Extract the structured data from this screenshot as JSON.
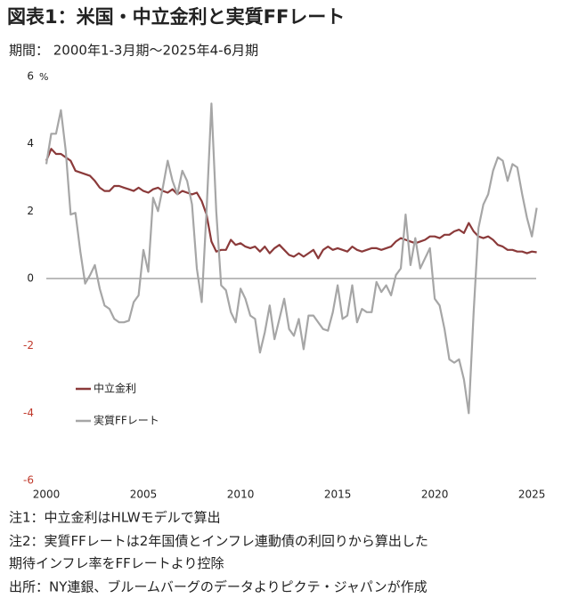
{
  "chart_data": {
    "type": "line",
    "title": "図表1：米国・中立金利と実質FFレート",
    "subtitle": "期間： 2000年1-3月期～2025年4-6月期",
    "y_unit": "%",
    "notes": [
      "注1：中立金利はHLWモデルで算出",
      "注2：実質FFレートは2年国債とインフレ連動債の利回りから算出した期待インフレ率をFFレートより控除",
      "出所：NY連銀、ブルームバーグのデータよりピクテ・ジャパンが作成"
    ],
    "x": [
      2000,
      2000.25,
      2000.5,
      2000.75,
      2001,
      2001.25,
      2001.5,
      2001.75,
      2002,
      2002.25,
      2002.5,
      2002.75,
      2003,
      2003.25,
      2003.5,
      2003.75,
      2004,
      2004.25,
      2004.5,
      2004.75,
      2005,
      2005.25,
      2005.5,
      2005.75,
      2006,
      2006.25,
      2006.5,
      2006.75,
      2007,
      2007.25,
      2007.5,
      2007.75,
      2008,
      2008.25,
      2008.5,
      2008.75,
      2009,
      2009.25,
      2009.5,
      2009.75,
      2010,
      2010.25,
      2010.5,
      2010.75,
      2011,
      2011.25,
      2011.5,
      2011.75,
      2012,
      2012.25,
      2012.5,
      2012.75,
      2013,
      2013.25,
      2013.5,
      2013.75,
      2014,
      2014.25,
      2014.5,
      2014.75,
      2015,
      2015.25,
      2015.5,
      2015.75,
      2016,
      2016.25,
      2016.5,
      2016.75,
      2017,
      2017.25,
      2017.5,
      2017.75,
      2018,
      2018.25,
      2018.5,
      2018.75,
      2019,
      2019.25,
      2019.5,
      2019.75,
      2020,
      2020.25,
      2020.5,
      2020.75,
      2021,
      2021.25,
      2021.5,
      2021.75,
      2022,
      2022.25,
      2022.5,
      2022.75,
      2023,
      2023.25,
      2023.5,
      2023.75,
      2024,
      2024.25,
      2024.5,
      2024.75,
      2025,
      2025.25
    ],
    "series": [
      {
        "name": "中立金利",
        "color": "#8b3a3a",
        "values": [
          3.5,
          3.85,
          3.7,
          3.7,
          3.6,
          3.5,
          3.2,
          3.15,
          3.1,
          3.05,
          2.9,
          2.7,
          2.6,
          2.6,
          2.75,
          2.75,
          2.7,
          2.65,
          2.6,
          2.7,
          2.6,
          2.55,
          2.65,
          2.7,
          2.6,
          2.55,
          2.65,
          2.5,
          2.6,
          2.55,
          2.5,
          2.55,
          2.3,
          1.9,
          1.1,
          0.8,
          0.85,
          0.85,
          1.15,
          1.0,
          1.05,
          0.95,
          0.9,
          0.95,
          0.8,
          0.95,
          0.75,
          0.9,
          1.0,
          0.85,
          0.7,
          0.65,
          0.75,
          0.65,
          0.75,
          0.85,
          0.6,
          0.85,
          0.95,
          0.85,
          0.9,
          0.85,
          0.8,
          0.95,
          0.85,
          0.8,
          0.85,
          0.9,
          0.9,
          0.85,
          0.9,
          0.95,
          1.1,
          1.2,
          1.15,
          1.1,
          1.05,
          1.1,
          1.15,
          1.25,
          1.25,
          1.2,
          1.3,
          1.3,
          1.4,
          1.45,
          1.35,
          1.65,
          1.4,
          1.25,
          1.2,
          1.25,
          1.15,
          1.0,
          0.95,
          0.85,
          0.85,
          0.8,
          0.8,
          0.75,
          0.8,
          0.78
        ]
      },
      {
        "name": "実質FFレート",
        "color": "#a6a6a6",
        "values": [
          3.4,
          4.3,
          4.3,
          5.0,
          3.8,
          1.9,
          1.95,
          0.8,
          -0.15,
          0.1,
          0.4,
          -0.3,
          -0.8,
          -0.9,
          -1.2,
          -1.3,
          -1.3,
          -1.25,
          -0.7,
          -0.5,
          0.85,
          0.2,
          2.4,
          2.0,
          2.7,
          3.5,
          2.9,
          2.5,
          3.2,
          2.9,
          2.2,
          0.3,
          -0.7,
          2.0,
          5.2,
          2.0,
          -0.2,
          -0.35,
          -1.0,
          -1.3,
          -0.3,
          -0.6,
          -1.1,
          -1.2,
          -2.2,
          -1.6,
          -0.8,
          -1.8,
          -1.2,
          -0.6,
          -1.5,
          -1.7,
          -1.2,
          -2.1,
          -1.1,
          -1.1,
          -1.3,
          -1.5,
          -1.55,
          -1.0,
          -0.2,
          -1.2,
          -1.1,
          -0.2,
          -1.3,
          -0.9,
          -1.0,
          -1.0,
          -0.1,
          -0.4,
          -0.2,
          -0.5,
          0.1,
          0.3,
          1.9,
          0.4,
          1.2,
          0.3,
          0.6,
          0.9,
          -0.6,
          -0.8,
          -1.5,
          -2.4,
          -2.5,
          -2.4,
          -3.0,
          -4.0,
          -1.0,
          1.5,
          2.2,
          2.5,
          3.2,
          3.6,
          3.5,
          2.9,
          3.4,
          3.3,
          2.5,
          1.8,
          1.25,
          2.1
        ]
      }
    ],
    "xlim": [
      2000,
      2025.45
    ],
    "xticks": [
      2000,
      2005,
      2010,
      2015,
      2020,
      2025
    ],
    "ylim": [
      -6,
      6
    ],
    "yticks": [
      -6,
      -4,
      -2,
      0,
      2,
      4,
      6
    ],
    "zero_line": true,
    "legend": "center-left",
    "negative_tick_color": "#c0392b"
  }
}
